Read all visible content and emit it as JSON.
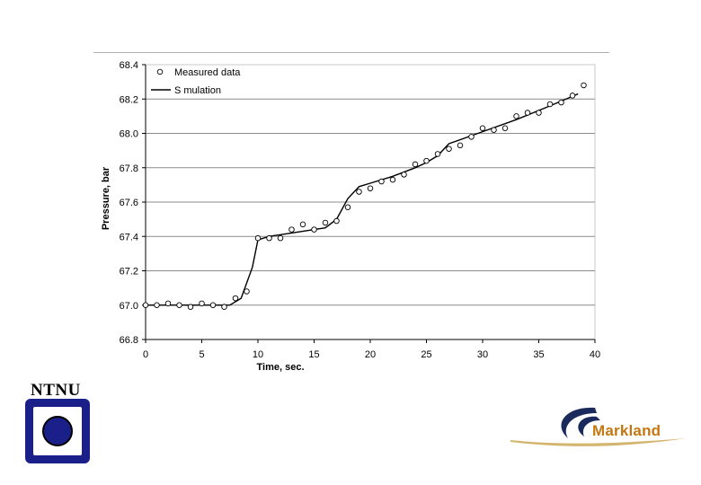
{
  "chart_data": {
    "type": "scatter",
    "title": "",
    "xlabel": "Time, sec.",
    "ylabel": "Pressure, bar",
    "xlim": [
      0,
      40
    ],
    "ylim": [
      66.8,
      68.4
    ],
    "xticks": [
      0,
      5,
      10,
      15,
      20,
      25,
      30,
      35,
      40
    ],
    "yticks": [
      66.8,
      67.0,
      67.2,
      67.4,
      67.6,
      67.8,
      68.0,
      68.2,
      68.4
    ],
    "ytick_labels": [
      "66.8",
      "67.0",
      "67.2",
      "67.4",
      "67.6",
      "67.8",
      "68.0",
      "68.2",
      "68.4"
    ],
    "grid": "horizontal",
    "legend_position": "top-left",
    "series": [
      {
        "name": "Measured data",
        "style": "open-circle",
        "x": [
          0,
          1,
          2,
          3,
          4,
          5,
          6,
          7,
          8,
          9,
          10,
          11,
          12,
          13,
          14,
          15,
          16,
          17,
          18,
          19,
          20,
          21,
          22,
          23,
          24,
          25,
          26,
          27,
          28,
          29,
          30,
          31,
          32,
          33,
          34,
          35,
          36,
          37,
          38,
          39
        ],
        "y": [
          67.0,
          67.0,
          67.01,
          67.0,
          66.99,
          67.01,
          67.0,
          66.99,
          67.04,
          67.08,
          67.39,
          67.39,
          67.39,
          67.44,
          67.47,
          67.44,
          67.48,
          67.49,
          67.57,
          67.66,
          67.68,
          67.72,
          67.73,
          67.76,
          67.82,
          67.84,
          67.88,
          67.91,
          67.93,
          67.98,
          68.03,
          68.02,
          68.03,
          68.1,
          68.12,
          68.12,
          68.17,
          68.18,
          68.22,
          68.28
        ]
      },
      {
        "name": "S mulation",
        "style": "line",
        "x": [
          0,
          7.5,
          8.5,
          9.5,
          10.0,
          11,
          13,
          15,
          16,
          17,
          18,
          19,
          20,
          22,
          24,
          25,
          26,
          27,
          30,
          33,
          36,
          38.5
        ],
        "y": [
          67.0,
          67.0,
          67.04,
          67.22,
          67.38,
          67.4,
          67.42,
          67.44,
          67.45,
          67.5,
          67.62,
          67.69,
          67.71,
          67.75,
          67.8,
          67.83,
          67.87,
          67.94,
          68.01,
          68.08,
          68.16,
          68.23
        ]
      }
    ]
  },
  "logos": {
    "ntnu_text": "NTNU",
    "markland_name": "Markland"
  },
  "colors": {
    "ntnu_blue": "#1b1f8a",
    "markland_orange": "#c47712",
    "markland_navy": "#1b2a5c"
  }
}
